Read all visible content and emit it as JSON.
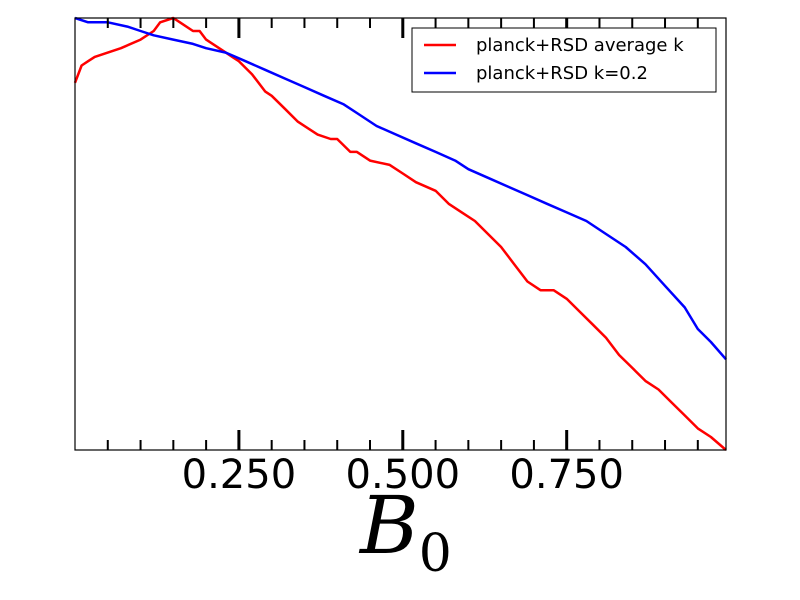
{
  "chart_data": {
    "type": "line",
    "title": "",
    "xlabel_main": "B",
    "xlabel_sub": "0",
    "ylabel": "",
    "xlim": [
      0.0,
      0.993
    ],
    "ylim": [
      0.0,
      1.0
    ],
    "grid": false,
    "legend_position": "top-right",
    "major_ticks": [
      0.25,
      0.5,
      0.75
    ],
    "tick_labels": [
      "0.250",
      "0.500",
      "0.750"
    ],
    "series": [
      {
        "name": "planck+RSD average k",
        "color": "#ff0000",
        "x": [
          0.0,
          0.01,
          0.02,
          0.03,
          0.05,
          0.07,
          0.1,
          0.12,
          0.13,
          0.15,
          0.16,
          0.18,
          0.19,
          0.2,
          0.21,
          0.23,
          0.24,
          0.25,
          0.27,
          0.29,
          0.3,
          0.32,
          0.34,
          0.37,
          0.39,
          0.4,
          0.42,
          0.43,
          0.45,
          0.48,
          0.5,
          0.52,
          0.55,
          0.57,
          0.59,
          0.61,
          0.63,
          0.65,
          0.67,
          0.69,
          0.71,
          0.73,
          0.75,
          0.77,
          0.79,
          0.81,
          0.83,
          0.85,
          0.87,
          0.89,
          0.91,
          0.93,
          0.95,
          0.97,
          0.993
        ],
        "y": [
          0.85,
          0.89,
          0.9,
          0.91,
          0.92,
          0.93,
          0.95,
          0.97,
          0.99,
          1.0,
          0.99,
          0.97,
          0.97,
          0.95,
          0.94,
          0.92,
          0.91,
          0.9,
          0.87,
          0.83,
          0.82,
          0.79,
          0.76,
          0.73,
          0.72,
          0.72,
          0.69,
          0.69,
          0.67,
          0.66,
          0.64,
          0.62,
          0.6,
          0.57,
          0.55,
          0.53,
          0.5,
          0.47,
          0.43,
          0.39,
          0.37,
          0.37,
          0.35,
          0.32,
          0.29,
          0.26,
          0.22,
          0.19,
          0.16,
          0.14,
          0.11,
          0.08,
          0.05,
          0.03,
          0.0
        ]
      },
      {
        "name": "planck+RSD k=0.2",
        "color": "#0000ff",
        "x": [
          0.0,
          0.02,
          0.05,
          0.08,
          0.1,
          0.12,
          0.15,
          0.18,
          0.2,
          0.23,
          0.26,
          0.29,
          0.32,
          0.35,
          0.38,
          0.41,
          0.43,
          0.46,
          0.49,
          0.52,
          0.55,
          0.58,
          0.6,
          0.63,
          0.66,
          0.69,
          0.72,
          0.75,
          0.78,
          0.81,
          0.84,
          0.87,
          0.9,
          0.93,
          0.95,
          0.97,
          0.993
        ],
        "y": [
          1.0,
          0.99,
          0.99,
          0.98,
          0.97,
          0.96,
          0.95,
          0.94,
          0.93,
          0.92,
          0.9,
          0.88,
          0.86,
          0.84,
          0.82,
          0.8,
          0.78,
          0.75,
          0.73,
          0.71,
          0.69,
          0.67,
          0.65,
          0.63,
          0.61,
          0.59,
          0.57,
          0.55,
          0.53,
          0.5,
          0.47,
          0.43,
          0.38,
          0.33,
          0.28,
          0.25,
          0.21
        ]
      }
    ]
  }
}
